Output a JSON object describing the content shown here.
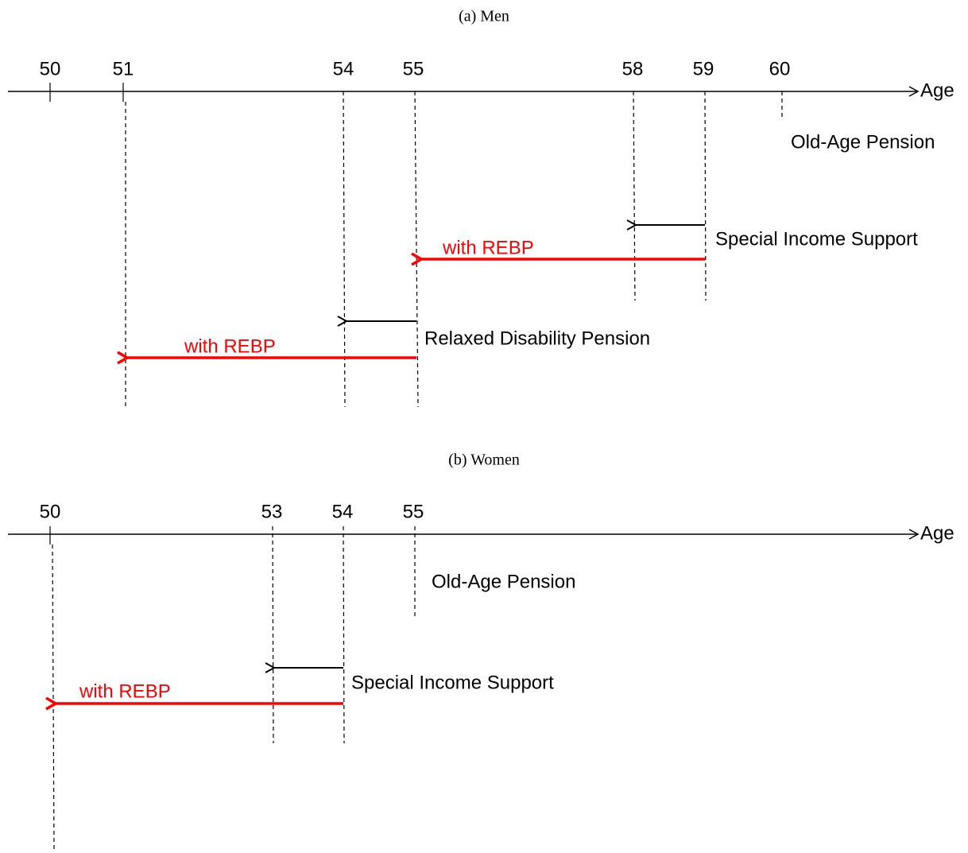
{
  "panels": [
    {
      "title": "(a) Men",
      "axis_label": "Age",
      "ticks": [
        50,
        51,
        54,
        55,
        58,
        59,
        60
      ],
      "programs": [
        {
          "label": "Old-Age Pension"
        },
        {
          "label": "Special Income Support",
          "rebp_label": "with REBP"
        },
        {
          "label": "Relaxed Disability Pension",
          "rebp_label": "with REBP"
        }
      ]
    },
    {
      "title": "(b) Women",
      "axis_label": "Age",
      "ticks": [
        50,
        53,
        54,
        55
      ],
      "programs": [
        {
          "label": "Old-Age Pension"
        },
        {
          "label": "Special Income Support",
          "rebp_label": "with REBP"
        }
      ]
    }
  ]
}
